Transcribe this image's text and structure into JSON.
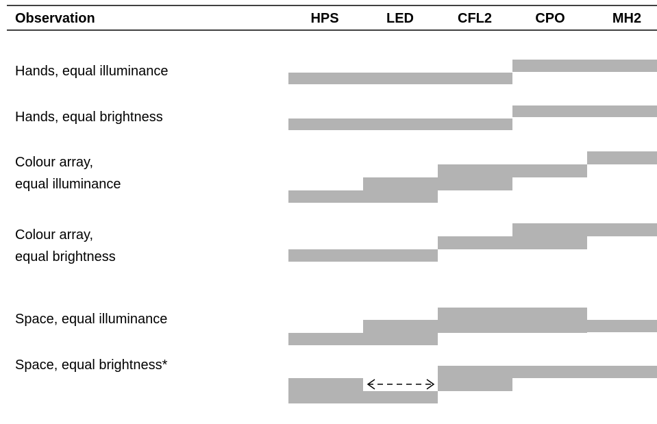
{
  "header": {
    "title": "Observation",
    "columns": [
      "HPS",
      "LED",
      "CFL2",
      "CPO",
      "MH2"
    ]
  },
  "rows": [
    {
      "label": "Hands, equal illuminance"
    },
    {
      "label": "Hands, equal brightness"
    },
    {
      "label": "Colour array, equal illuminance"
    },
    {
      "label": "Colour array, equal brightness"
    },
    {
      "label": "Space, equal illuminance"
    },
    {
      "label": "Space, equal brightness*"
    }
  ]
}
